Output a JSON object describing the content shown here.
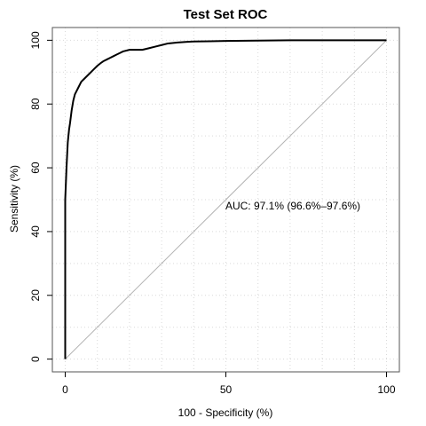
{
  "chart_data": {
    "type": "line",
    "title": "Test Set ROC",
    "xlabel": "100 - Specificity (%)",
    "ylabel": "Sensitivity (%)",
    "xlim": [
      -4,
      104
    ],
    "ylim": [
      -4,
      104
    ],
    "x_reversed": false,
    "grid": true,
    "legend": "none",
    "x_ticks": [
      0,
      50,
      100
    ],
    "y_ticks": [
      0,
      20,
      40,
      60,
      80,
      100
    ],
    "annotation": "AUC: 97.1% (96.6%–97.6%)",
    "reference_line": {
      "x": [
        0,
        100
      ],
      "y": [
        0,
        100
      ],
      "color": "#b3b3b3"
    },
    "series": [
      {
        "color": "#000000",
        "x": [
          0,
          0,
          0.2,
          0.4,
          0.6,
          0.8,
          1,
          1.2,
          1.5,
          2,
          2.5,
          3,
          3.5,
          4,
          5,
          6,
          7,
          8,
          9,
          10,
          11,
          12,
          13,
          14,
          15,
          16,
          17,
          18,
          20,
          22,
          24,
          26,
          28,
          30,
          32,
          35,
          38,
          40,
          45,
          50,
          60,
          70,
          80,
          90,
          100
        ],
        "y": [
          0,
          50,
          55,
          60,
          64,
          68,
          70,
          72,
          74,
          78,
          81,
          83,
          84,
          85,
          87,
          88,
          89,
          90,
          91,
          92,
          92.8,
          93.5,
          94,
          94.5,
          95,
          95.5,
          96,
          96.5,
          97,
          97,
          97,
          97.5,
          98,
          98.5,
          99,
          99.3,
          99.5,
          99.6,
          99.7,
          99.8,
          99.9,
          100,
          100,
          100,
          100
        ]
      }
    ]
  }
}
